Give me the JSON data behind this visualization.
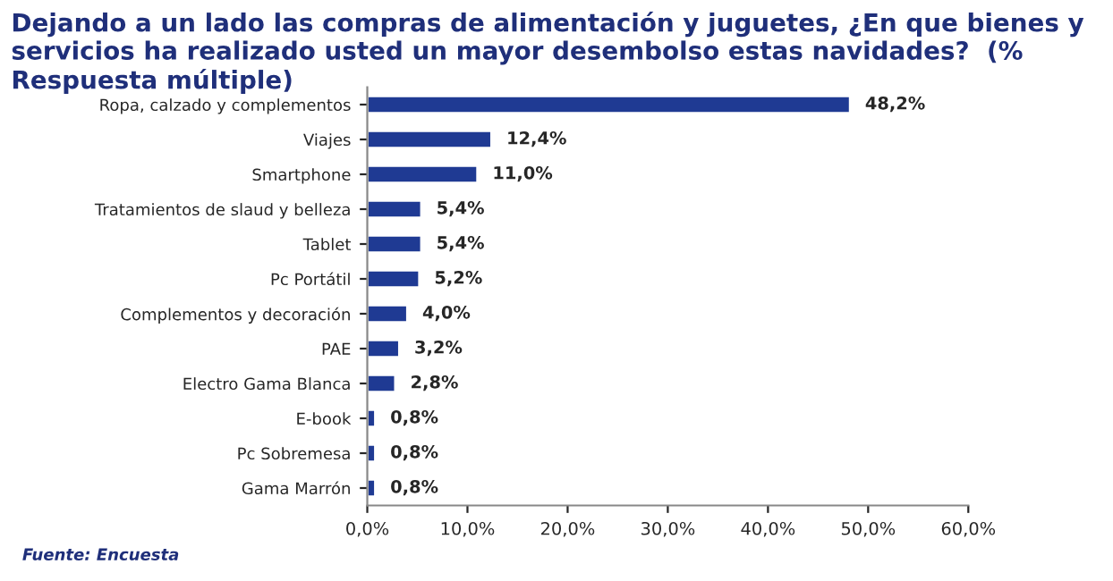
{
  "chart_data": {
    "type": "bar",
    "orientation": "horizontal",
    "title": "Dejando a un lado las compras de alimentación y juguetes, ¿En que bienes y servicios ha realizado usted un mayor desembolso estas navidades?  (% Respuesta múltiple)",
    "categories": [
      "Ropa, calzado y complementos",
      "Viajes",
      "Smartphone",
      "Tratamientos de slaud y belleza",
      "Tablet",
      "Pc Portátil",
      "Complementos y decoración",
      "PAE",
      "Electro Gama Blanca",
      "E-book",
      "Pc Sobremesa",
      "Gama Marrón"
    ],
    "values": [
      48.2,
      12.4,
      11.0,
      5.4,
      5.4,
      5.2,
      4.0,
      3.2,
      2.8,
      0.8,
      0.8,
      0.8
    ],
    "value_labels": [
      "48,2%",
      "12,4%",
      "11,0%",
      "5,4%",
      "5,4%",
      "5,2%",
      "4,0%",
      "3,2%",
      "2,8%",
      "0,8%",
      "0,8%",
      "0,8%"
    ],
    "color": "#1f3a93",
    "xlim": [
      0,
      60
    ],
    "xticks": [
      {
        "value": 0,
        "label": "0,0%"
      },
      {
        "value": 10,
        "label": "10,0%"
      },
      {
        "value": 20,
        "label": "20,0%"
      },
      {
        "value": 30,
        "label": "30,0%"
      },
      {
        "value": 40,
        "label": "40,0%"
      },
      {
        "value": 50,
        "label": "50,0%"
      },
      {
        "value": 60,
        "label": "60,0%"
      }
    ],
    "grid": false,
    "annotations": [
      "Fuente: Encuesta"
    ]
  }
}
